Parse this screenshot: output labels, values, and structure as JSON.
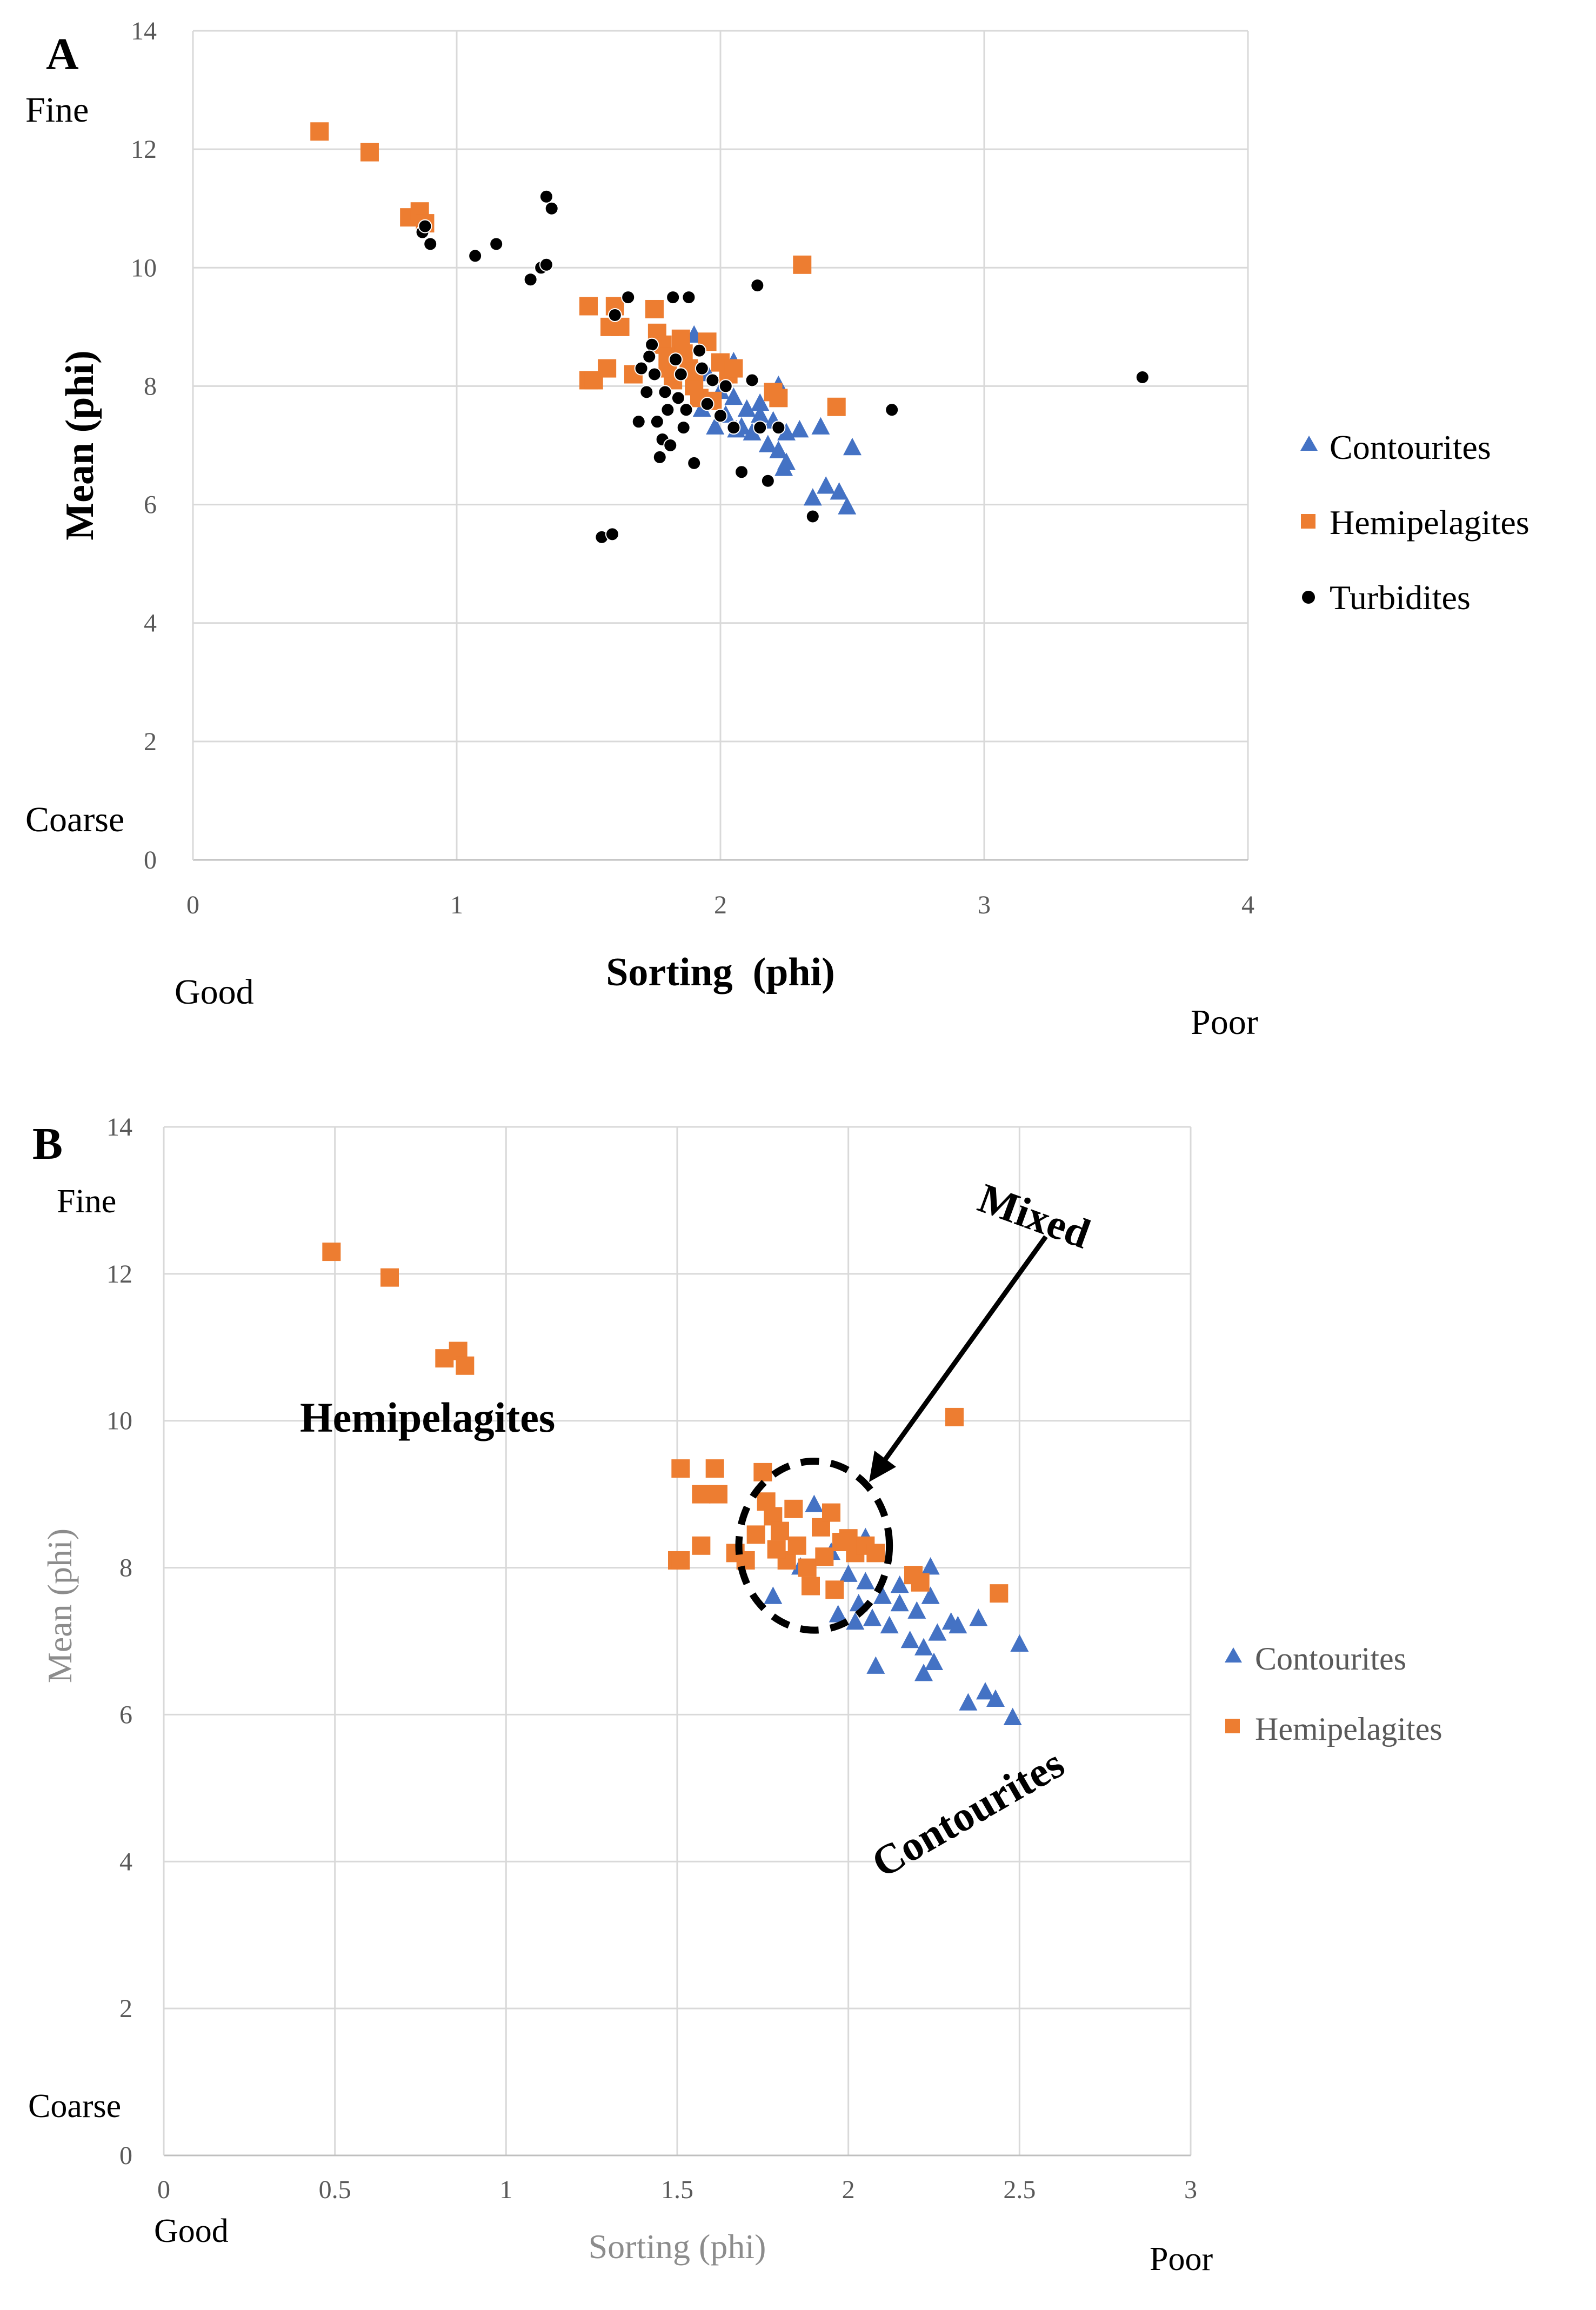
{
  "chart_data": [
    {
      "panel_label": "A",
      "type": "scatter",
      "xlabel": "Sorting  (phi)",
      "ylabel": "Mean (phi)",
      "xlim": [
        0,
        4
      ],
      "ylim": [
        0,
        14
      ],
      "xticks": [
        "0",
        "1",
        "2",
        "3",
        "4"
      ],
      "yticks": [
        "0",
        "2",
        "4",
        "6",
        "8",
        "10",
        "12",
        "14"
      ],
      "grid": true,
      "legend_position": "right",
      "annotations": {
        "fine": "Fine",
        "coarse": "Coarse",
        "good": "Good",
        "poor": "Poor"
      },
      "series": [
        {
          "name": "Contourites",
          "marker": "triangle",
          "color": "#4472c4",
          "points": [
            [
              1.9,
              8.85
            ],
            [
              1.95,
              8.2
            ],
            [
              2.0,
              7.9
            ],
            [
              2.02,
              7.5
            ],
            [
              2.05,
              7.8
            ],
            [
              2.05,
              8.4
            ],
            [
              2.08,
              7.3
            ],
            [
              2.1,
              7.6
            ],
            [
              2.12,
              7.2
            ],
            [
              2.15,
              7.5
            ],
            [
              2.18,
              7.0
            ],
            [
              2.2,
              7.4
            ],
            [
              2.22,
              6.9
            ],
            [
              2.22,
              8.0
            ],
            [
              2.25,
              6.7
            ],
            [
              2.3,
              7.25
            ],
            [
              2.35,
              6.1
            ],
            [
              2.38,
              7.3
            ],
            [
              2.4,
              6.3
            ],
            [
              2.45,
              6.2
            ],
            [
              2.48,
              5.95
            ],
            [
              2.5,
              6.95
            ],
            [
              2.24,
              6.6
            ],
            [
              1.98,
              7.3
            ],
            [
              2.06,
              7.25
            ],
            [
              1.93,
              7.6
            ],
            [
              2.15,
              7.7
            ],
            [
              2.25,
              7.2
            ]
          ]
        },
        {
          "name": "Hemipelagites",
          "marker": "square",
          "color": "#ed7d31",
          "points": [
            [
              0.48,
              12.3
            ],
            [
              0.67,
              11.95
            ],
            [
              0.82,
              10.85
            ],
            [
              0.86,
              10.95
            ],
            [
              0.88,
              10.75
            ],
            [
              1.5,
              9.35
            ],
            [
              1.6,
              9.35
            ],
            [
              1.58,
              9.0
            ],
            [
              1.62,
              9.0
            ],
            [
              1.5,
              8.1
            ],
            [
              1.52,
              8.1
            ],
            [
              1.57,
              8.3
            ],
            [
              1.67,
              8.2
            ],
            [
              1.75,
              9.3
            ],
            [
              1.76,
              8.9
            ],
            [
              1.78,
              8.7
            ],
            [
              1.8,
              8.5
            ],
            [
              1.82,
              8.1
            ],
            [
              1.85,
              8.8
            ],
            [
              1.88,
              8.3
            ],
            [
              1.9,
              8.0
            ],
            [
              1.92,
              7.8
            ],
            [
              1.95,
              8.75
            ],
            [
              1.97,
              7.75
            ],
            [
              2.0,
              8.4
            ],
            [
              2.03,
              8.2
            ],
            [
              2.05,
              8.3
            ],
            [
              2.2,
              7.9
            ],
            [
              2.22,
              7.8
            ],
            [
              2.31,
              10.05
            ],
            [
              2.44,
              7.65
            ],
            [
              1.8,
              8.3
            ],
            [
              1.86,
              8.55
            ],
            [
              1.9,
              8.25
            ]
          ]
        },
        {
          "name": "Turbidites",
          "marker": "circle",
          "color": "#000000",
          "points": [
            [
              0.87,
              10.6
            ],
            [
              0.9,
              10.4
            ],
            [
              0.88,
              10.7
            ],
            [
              1.07,
              10.2
            ],
            [
              1.15,
              10.4
            ],
            [
              1.28,
              9.8
            ],
            [
              1.32,
              10.0
            ],
            [
              1.34,
              10.05
            ],
            [
              1.34,
              11.2
            ],
            [
              1.36,
              11.0
            ],
            [
              1.55,
              5.45
            ],
            [
              1.59,
              5.5
            ],
            [
              1.6,
              9.2
            ],
            [
              1.65,
              9.5
            ],
            [
              1.7,
              8.3
            ],
            [
              1.72,
              7.9
            ],
            [
              1.74,
              8.7
            ],
            [
              1.75,
              8.2
            ],
            [
              1.76,
              7.4
            ],
            [
              1.77,
              6.8
            ],
            [
              1.78,
              7.1
            ],
            [
              1.8,
              7.6
            ],
            [
              1.81,
              7.0
            ],
            [
              1.82,
              9.5
            ],
            [
              1.84,
              7.8
            ],
            [
              1.85,
              8.2
            ],
            [
              1.86,
              7.3
            ],
            [
              1.88,
              9.5
            ],
            [
              1.9,
              6.7
            ],
            [
              1.92,
              8.6
            ],
            [
              1.95,
              7.7
            ],
            [
              1.97,
              8.1
            ],
            [
              2.0,
              7.5
            ],
            [
              2.02,
              8.0
            ],
            [
              2.05,
              7.3
            ],
            [
              2.08,
              6.55
            ],
            [
              2.12,
              8.1
            ],
            [
              2.14,
              9.7
            ],
            [
              2.15,
              7.3
            ],
            [
              2.18,
              6.4
            ],
            [
              2.22,
              7.3
            ],
            [
              2.35,
              5.8
            ],
            [
              2.65,
              7.6
            ],
            [
              3.6,
              8.15
            ],
            [
              1.73,
              8.5
            ],
            [
              1.79,
              7.9
            ],
            [
              1.83,
              8.45
            ],
            [
              1.87,
              7.6
            ],
            [
              1.93,
              8.3
            ],
            [
              1.69,
              7.4
            ]
          ]
        }
      ]
    },
    {
      "panel_label": "B",
      "type": "scatter",
      "xlabel": "Sorting (phi)",
      "ylabel": "Mean (phi)",
      "xlim": [
        0,
        3
      ],
      "ylim": [
        0,
        14
      ],
      "xticks": [
        "0",
        "0.5",
        "1",
        "1.5",
        "2",
        "2.5",
        "3"
      ],
      "yticks": [
        "0",
        "2",
        "4",
        "6",
        "8",
        "10",
        "12",
        "14"
      ],
      "grid": true,
      "legend_position": "right",
      "annotations": {
        "fine": "Fine",
        "coarse": "Coarse",
        "good": "Good",
        "poor": "Poor",
        "mixed": "Mixed",
        "hemipelagites": "Hemipelagites",
        "contourites": "Contourites"
      },
      "mixed_circle": {
        "center": [
          1.9,
          8.3
        ],
        "radius_x": 0.22,
        "radius_y": 1.15
      },
      "series": [
        {
          "name": "Contourites",
          "marker": "triangle",
          "color": "#4472c4",
          "points": [
            [
              1.78,
              7.6
            ],
            [
              1.86,
              8.0
            ],
            [
              1.9,
              8.85
            ],
            [
              1.95,
              8.2
            ],
            [
              1.97,
              7.35
            ],
            [
              2.0,
              7.9
            ],
            [
              2.02,
              7.25
            ],
            [
              2.03,
              7.5
            ],
            [
              2.05,
              7.8
            ],
            [
              2.05,
              8.4
            ],
            [
              2.07,
              7.3
            ],
            [
              2.08,
              6.65
            ],
            [
              2.1,
              7.6
            ],
            [
              2.12,
              7.2
            ],
            [
              2.15,
              7.5
            ],
            [
              2.18,
              7.0
            ],
            [
              2.2,
              7.4
            ],
            [
              2.22,
              6.9
            ],
            [
              2.24,
              7.6
            ],
            [
              2.24,
              8.0
            ],
            [
              2.22,
              6.55
            ],
            [
              2.25,
              6.7
            ],
            [
              2.3,
              7.25
            ],
            [
              2.32,
              7.2
            ],
            [
              2.35,
              6.15
            ],
            [
              2.38,
              7.3
            ],
            [
              2.4,
              6.3
            ],
            [
              2.43,
              6.2
            ],
            [
              2.48,
              5.95
            ],
            [
              2.5,
              6.95
            ],
            [
              2.15,
              7.75
            ],
            [
              2.26,
              7.1
            ]
          ]
        },
        {
          "name": "Hemipelagites",
          "marker": "square",
          "color": "#ed7d31",
          "points": [
            [
              0.49,
              12.3
            ],
            [
              0.66,
              11.95
            ],
            [
              0.82,
              10.85
            ],
            [
              0.86,
              10.95
            ],
            [
              0.88,
              10.75
            ],
            [
              1.51,
              9.35
            ],
            [
              1.61,
              9.35
            ],
            [
              1.57,
              9.0
            ],
            [
              1.62,
              9.0
            ],
            [
              1.5,
              8.1
            ],
            [
              1.51,
              8.1
            ],
            [
              1.57,
              8.3
            ],
            [
              1.67,
              8.2
            ],
            [
              1.75,
              9.3
            ],
            [
              1.76,
              8.9
            ],
            [
              1.78,
              8.7
            ],
            [
              1.8,
              8.5
            ],
            [
              1.82,
              8.1
            ],
            [
              1.84,
              8.8
            ],
            [
              1.85,
              8.3
            ],
            [
              1.88,
              8.0
            ],
            [
              1.89,
              7.75
            ],
            [
              1.92,
              8.55
            ],
            [
              1.95,
              8.75
            ],
            [
              1.96,
              7.7
            ],
            [
              2.0,
              8.4
            ],
            [
              2.02,
              8.2
            ],
            [
              2.05,
              8.3
            ],
            [
              1.7,
              8.1
            ],
            [
              1.73,
              8.45
            ],
            [
              1.79,
              8.25
            ],
            [
              1.93,
              8.15
            ],
            [
              1.98,
              8.35
            ],
            [
              2.08,
              8.2
            ],
            [
              2.19,
              7.9
            ],
            [
              2.21,
              7.8
            ],
            [
              2.31,
              10.05
            ],
            [
              2.44,
              7.65
            ]
          ]
        }
      ]
    }
  ]
}
